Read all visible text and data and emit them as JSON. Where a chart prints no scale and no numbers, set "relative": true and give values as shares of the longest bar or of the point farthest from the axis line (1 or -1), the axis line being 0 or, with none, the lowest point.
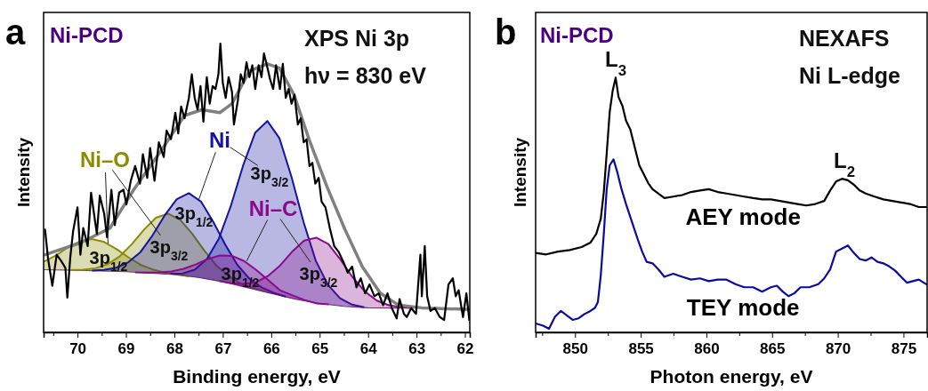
{
  "chart_data": [
    {
      "type": "line",
      "title": "XPS Ni 3p",
      "subtitle": "hν = 830 eV",
      "xlabel": "Binding energy, eV",
      "ylabel": "Intensity",
      "relative": true,
      "tick_labels": "x",
      "xlim": [
        70.7,
        61.9
      ],
      "xticks": [
        {
          "value": 70.5,
          "label": null
        },
        70,
        {
          "value": 69.5,
          "label": null
        },
        69,
        {
          "value": 68.5,
          "label": null
        },
        68,
        {
          "value": 67.5,
          "label": null
        },
        67,
        {
          "value": 66.5,
          "label": null
        },
        66,
        {
          "value": 65.5,
          "label": null
        },
        65,
        {
          "value": 64.5,
          "label": null
        },
        64,
        {
          "value": 63.5,
          "label": null
        },
        63,
        {
          "value": 62.5,
          "label": null
        },
        62
      ],
      "annotations": [
        "a",
        "Ni-PCD",
        "Ni–O",
        "Ni",
        "Ni–C",
        "3p$_{1/2}$",
        "3p$_{1/2}$",
        "3p$_{1/2}$",
        "3p$_{3/2}$",
        "3p$_{3/2}$",
        "3p$_{3/2}$"
      ],
      "series": [
        {
          "color": "#6a3a6a",
          "x": [
            70.7,
            70,
            69,
            68,
            67.5,
            67,
            66.5,
            66,
            65.5,
            65,
            64.5,
            64,
            63.5,
            62
          ],
          "values": [
            0.217,
            0.215,
            0.21,
            0.2,
            0.19,
            0.175,
            0.155,
            0.135,
            0.115,
            0.1,
            0.09,
            0.085,
            0.084,
            0.084
          ]
        },
        {
          "type": "area",
          "color": "#8c8c00",
          "x": [
            70.7,
            70.45,
            70.2,
            69.95,
            69.7,
            69.45,
            69.2,
            68.95,
            68.7,
            68.45,
            68.2,
            67.7
          ],
          "values": [
            0.244,
            0.266,
            0.294,
            0.315,
            0.323,
            0.313,
            0.289,
            0.26,
            0.234,
            0.218,
            0.207,
            0.194
          ]
        },
        {
          "type": "area",
          "color": "#8c8c00",
          "x": [
            70.13,
            69.88,
            69.63,
            69.38,
            69.13,
            68.88,
            68.63,
            68.38,
            68.13,
            67.88,
            67.63,
            67.38,
            67.13,
            66.88,
            66.63,
            66.38,
            66.13
          ],
          "values": [
            0.216,
            0.217,
            0.222,
            0.236,
            0.263,
            0.305,
            0.355,
            0.397,
            0.411,
            0.39,
            0.341,
            0.283,
            0.231,
            0.195,
            0.169,
            0.153,
            0.141
          ]
        },
        {
          "type": "area",
          "color": "#1414a0",
          "x": [
            69.7,
            69.45,
            69.2,
            68.95,
            68.7,
            68.45,
            68.2,
            67.95,
            67.7,
            67.45,
            67.2,
            66.95,
            66.7,
            66.45,
            66.2,
            65.95,
            65.7
          ],
          "values": [
            0.214,
            0.216,
            0.224,
            0.243,
            0.278,
            0.336,
            0.405,
            0.461,
            0.482,
            0.453,
            0.384,
            0.304,
            0.234,
            0.186,
            0.156,
            0.137,
            0.124
          ]
        },
        {
          "type": "area",
          "color": "#1414a0",
          "x": [
            68.08,
            67.83,
            67.58,
            67.33,
            67.08,
            66.83,
            66.58,
            66.33,
            66.08,
            65.83,
            65.58,
            65.33,
            65.08,
            64.83,
            64.58,
            64.33,
            64.08
          ],
          "values": [
            0.203,
            0.204,
            0.217,
            0.253,
            0.325,
            0.44,
            0.578,
            0.692,
            0.732,
            0.672,
            0.538,
            0.381,
            0.248,
            0.165,
            0.118,
            0.096,
            0.087
          ]
        },
        {
          "type": "area",
          "color": "#8b0a8b",
          "x": [
            68.81,
            68.56,
            68.31,
            68.06,
            67.81,
            67.56,
            67.31,
            67.06,
            66.81,
            66.56,
            66.31,
            66.06,
            65.81,
            65.56,
            65.31,
            65.06,
            64.81
          ],
          "values": [
            0.208,
            0.207,
            0.208,
            0.211,
            0.22,
            0.235,
            0.254,
            0.266,
            0.265,
            0.247,
            0.216,
            0.181,
            0.145,
            0.128,
            0.112,
            0.1,
            0.097
          ]
        },
        {
          "type": "area",
          "color": "#8b0a8b",
          "x": [
            67.07,
            66.82,
            66.57,
            66.32,
            66.07,
            65.82,
            65.57,
            65.32,
            65.07,
            64.82,
            64.57,
            64.32,
            64.07,
            63.82,
            63.57,
            63.32,
            63.07
          ],
          "values": [
            0.178,
            0.17,
            0.168,
            0.173,
            0.195,
            0.231,
            0.279,
            0.318,
            0.328,
            0.306,
            0.252,
            0.191,
            0.142,
            0.11,
            0.094,
            0.087,
            0.085
          ]
        },
        {
          "color": "#808080",
          "x": [
            70.67,
            69.94,
            69.33,
            68.84,
            68.28,
            67.79,
            67.43,
            67.06,
            66.81,
            66.45,
            66.08,
            65.83,
            65.53,
            65.22,
            64.85,
            64.49,
            64.12,
            63.75,
            63.38,
            62.89,
            61.91
          ],
          "values": [
            0.269,
            0.31,
            0.361,
            0.494,
            0.628,
            0.751,
            0.771,
            0.761,
            0.792,
            0.905,
            0.93,
            0.915,
            0.823,
            0.669,
            0.505,
            0.361,
            0.228,
            0.136,
            0.095,
            0.085,
            0.079
          ]
        },
        {
          "color": "#000000",
          "x": [
            70.67,
            70.61,
            70.52,
            70.43,
            70.34,
            70.25,
            70.21,
            70.15,
            70.09,
            70.0,
            69.94,
            69.88,
            69.79,
            69.72,
            69.66,
            69.6,
            69.54,
            69.45,
            69.39,
            69.3,
            69.23,
            69.14,
            69.05,
            68.99,
            68.9,
            68.81,
            68.71,
            68.65,
            68.56,
            68.5,
            68.41,
            68.32,
            68.22,
            68.16,
            68.07,
            67.98,
            67.92,
            67.86,
            67.79,
            67.7,
            67.64,
            67.58,
            67.52,
            67.46,
            67.4,
            67.33,
            67.27,
            67.21,
            67.15,
            67.09,
            67.05,
            67.0,
            66.94,
            66.88,
            66.81,
            66.77,
            66.69,
            66.63,
            66.57,
            66.51,
            66.45,
            66.39,
            66.33,
            66.26,
            66.2,
            66.15,
            66.09,
            66.02,
            65.96,
            65.9,
            65.82,
            65.76,
            65.7,
            65.64,
            65.58,
            65.52,
            65.45,
            65.39,
            65.33,
            65.27,
            65.21,
            65.15,
            65.09,
            65.02,
            64.96,
            64.88,
            64.79,
            64.7,
            64.61,
            64.52,
            64.42,
            64.33,
            64.24,
            64.15,
            64.06,
            63.97,
            63.87,
            63.78,
            63.69,
            63.6,
            63.51,
            63.41,
            63.35,
            63.26,
            63.2,
            63.11,
            63.01,
            62.92,
            62.89,
            62.83,
            62.78,
            62.71,
            62.62,
            62.52,
            62.43,
            62.34,
            62.25,
            62.19,
            62.13,
            62.04,
            61.97,
            61.91
          ],
          "values": [
            0.356,
            0.258,
            0.161,
            0.269,
            0.248,
            0.223,
            0.12,
            0.258,
            0.351,
            0.433,
            0.269,
            0.361,
            0.299,
            0.484,
            0.412,
            0.341,
            0.474,
            0.412,
            0.33,
            0.494,
            0.371,
            0.484,
            0.494,
            0.443,
            0.525,
            0.576,
            0.515,
            0.617,
            0.535,
            0.638,
            0.525,
            0.658,
            0.607,
            0.699,
            0.669,
            0.761,
            0.689,
            0.782,
            0.741,
            0.812,
            0.894,
            0.812,
            0.771,
            0.853,
            0.73,
            0.884,
            0.792,
            0.853,
            0.843,
            0.894,
            1,
            0.864,
            0.812,
            0.884,
            0.833,
            0.72,
            0.802,
            0.894,
            0.864,
            0.935,
            0.884,
            0.925,
            0.843,
            0.925,
            0.884,
            0.966,
            0.925,
            0.874,
            0.843,
            0.925,
            0.843,
            0.93,
            0.812,
            0.843,
            0.792,
            0.823,
            0.72,
            0.741,
            0.658,
            0.669,
            0.576,
            0.587,
            0.515,
            0.535,
            0.453,
            0.433,
            0.361,
            0.299,
            0.279,
            0.248,
            0.207,
            0.228,
            0.156,
            0.187,
            0.135,
            0.166,
            0.125,
            0.135,
            0.094,
            0.135,
            0.084,
            0.048,
            0.115,
            0.064,
            0.053,
            0.084,
            0.064,
            0.269,
            0.125,
            0.299,
            0.125,
            0.074,
            0.084,
            0.053,
            0.043,
            0.166,
            0.187,
            0.125,
            0.146,
            0.053,
            0.135,
            0.043
          ]
        }
      ]
    },
    {
      "type": "line",
      "title": "NEXAFS",
      "subtitle": "Ni L-edge",
      "xlabel": "Photon energy, eV",
      "ylabel": "Intensity",
      "relative": true,
      "tick_labels": "x",
      "xlim": [
        847,
        876.8
      ],
      "xticks": [
        {
          "value": 847.5,
          "label": null
        },
        850,
        {
          "value": 852.5,
          "label": null
        },
        855,
        {
          "value": 857.5,
          "label": null
        },
        860,
        {
          "value": 862.5,
          "label": null
        },
        865,
        {
          "value": 867.5,
          "label": null
        },
        870,
        {
          "value": 872.5,
          "label": null
        },
        875
      ],
      "annotations": [
        "b",
        "Ni-PCD",
        {
          "text": "L$_{3}$",
          "x": 853.1,
          "y": 1
        },
        {
          "text": "L$_{2}$",
          "x": 870.5,
          "y": 0.603
        }
      ],
      "series": [
        {
          "name": "AEY mode",
          "color": "#000000",
          "x": [
            847.0,
            847.8,
            848.7,
            849.6,
            850.5,
            851.17,
            851.62,
            851.96,
            852.19,
            852.41,
            852.64,
            852.86,
            853.09,
            853.31,
            853.61,
            853.88,
            854.21,
            854.55,
            854.89,
            855.23,
            855.57,
            855.9,
            856.35,
            856.8,
            857.48,
            858.16,
            858.83,
            859.51,
            860.18,
            860.86,
            861.53,
            862.21,
            862.88,
            863.56,
            864.24,
            864.91,
            865.59,
            866.26,
            866.94,
            867.61,
            868.29,
            868.97,
            869.42,
            869.87,
            870.32,
            870.77,
            871.22,
            871.67,
            872.12,
            872.8,
            873.47,
            874.15,
            874.82,
            875.5,
            876.17,
            876.74
          ],
          "values": [
            0.312,
            0.306,
            0.317,
            0.323,
            0.335,
            0.352,
            0.387,
            0.446,
            0.551,
            0.702,
            0.866,
            0.947,
            1,
            0.924,
            0.889,
            0.831,
            0.796,
            0.726,
            0.656,
            0.621,
            0.586,
            0.562,
            0.545,
            0.527,
            0.533,
            0.539,
            0.551,
            0.557,
            0.562,
            0.551,
            0.545,
            0.539,
            0.533,
            0.527,
            0.522,
            0.522,
            0.516,
            0.51,
            0.504,
            0.498,
            0.504,
            0.516,
            0.557,
            0.592,
            0.603,
            0.597,
            0.58,
            0.557,
            0.545,
            0.533,
            0.522,
            0.516,
            0.51,
            0.504,
            0.492,
            0.492
          ]
        },
        {
          "name": "TEY mode",
          "color": "#0a0aa0",
          "x": [
            847.0,
            847.57,
            848.02,
            848.47,
            848.92,
            849.37,
            849.82,
            850.27,
            850.72,
            851.17,
            851.51,
            851.74,
            851.96,
            852.19,
            852.41,
            852.64,
            852.93,
            853.2,
            853.54,
            853.88,
            854.33,
            854.78,
            855.11,
            855.45,
            855.9,
            856.35,
            856.8,
            857.48,
            858.16,
            858.83,
            859.51,
            860.18,
            860.86,
            861.53,
            862.21,
            862.88,
            863.56,
            864.24,
            864.91,
            865.36,
            865.81,
            866.26,
            866.71,
            867.16,
            867.84,
            868.52,
            868.97,
            869.42,
            869.87,
            870.32,
            870.77,
            871.22,
            871.67,
            872.12,
            872.57,
            873.02,
            873.47,
            873.92,
            874.37,
            874.82,
            875.27,
            875.72,
            876.17,
            876.74
          ],
          "values": [
            0.035,
            0.026,
            0.014,
            0.061,
            0.084,
            0.067,
            0.049,
            0.055,
            0.072,
            0.084,
            0.096,
            0.119,
            0.224,
            0.387,
            0.562,
            0.656,
            0.679,
            0.632,
            0.562,
            0.504,
            0.434,
            0.364,
            0.317,
            0.277,
            0.271,
            0.247,
            0.218,
            0.23,
            0.218,
            0.207,
            0.212,
            0.201,
            0.207,
            0.207,
            0.189,
            0.177,
            0.177,
            0.16,
            0.177,
            0.183,
            0.16,
            0.142,
            0.154,
            0.177,
            0.177,
            0.189,
            0.212,
            0.247,
            0.317,
            0.329,
            0.341,
            0.312,
            0.288,
            0.282,
            0.294,
            0.277,
            0.271,
            0.259,
            0.242,
            0.218,
            0.195,
            0.201,
            0.207,
            0.189
          ]
        }
      ]
    }
  ]
}
